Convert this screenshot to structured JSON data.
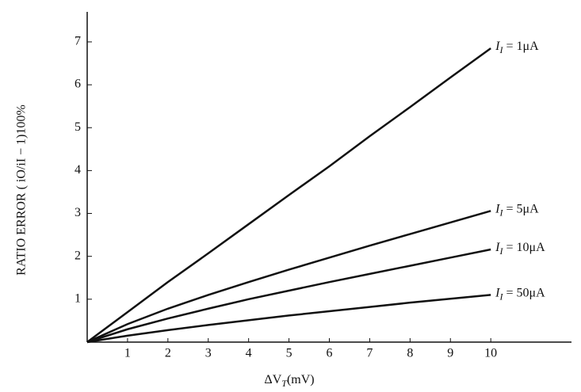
{
  "chart_data": {
    "type": "line",
    "x_label": "ΔVT(mV)",
    "y_label": "RATIO ERROR ( iO/iI − 1)100%",
    "x": [
      0,
      1,
      2,
      3,
      4,
      5,
      6,
      7,
      8,
      9,
      10
    ],
    "series": [
      {
        "name": "II = 1μA",
        "color": "#111111",
        "values": [
          0,
          0.7,
          1.4,
          2.07,
          2.75,
          3.43,
          4.1,
          4.8,
          5.48,
          6.17,
          6.85
        ]
      },
      {
        "name": "II = 5μA",
        "color": "#111111",
        "values": [
          0,
          0.42,
          0.78,
          1.1,
          1.4,
          1.69,
          1.97,
          2.25,
          2.52,
          2.79,
          3.06
        ]
      },
      {
        "name": "II = 10μA",
        "color": "#111111",
        "values": [
          0,
          0.3,
          0.55,
          0.78,
          1.0,
          1.2,
          1.4,
          1.59,
          1.78,
          1.97,
          2.16
        ]
      },
      {
        "name": "II = 50μA",
        "color": "#111111",
        "values": [
          0,
          0.15,
          0.28,
          0.4,
          0.51,
          0.62,
          0.72,
          0.82,
          0.92,
          1.01,
          1.1
        ]
      }
    ],
    "xlim": [
      0,
      12
    ],
    "ylim": [
      0,
      7.7
    ],
    "xticks": [
      1,
      2,
      3,
      4,
      5,
      6,
      7,
      8,
      9,
      10
    ],
    "yticks": [
      1,
      2,
      3,
      4,
      5,
      6,
      7
    ],
    "grid": false
  }
}
